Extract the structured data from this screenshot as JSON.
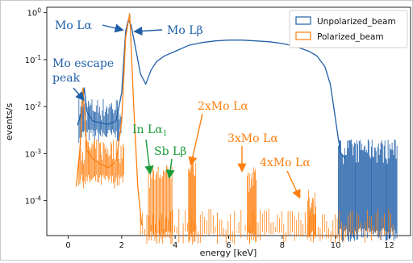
{
  "chart_data": {
    "type": "line",
    "xlabel": "energy [keV]",
    "ylabel": "events/s",
    "yscale": "log",
    "xlim": [
      -0.8,
      12.8
    ],
    "ylim": [
      1.8e-05,
      1.3
    ],
    "x_ticks": [
      "0",
      "2",
      "4",
      "6",
      "8",
      "10",
      "12"
    ],
    "y_ticks": [
      "10^0",
      "10^-1",
      "10^-2",
      "10^-3",
      "10^-4"
    ],
    "legend": {
      "position": "top-right",
      "entries": [
        "Unpolarized_beam",
        "Polarized_beam"
      ]
    },
    "colors": {
      "unpolarized": "#1f5fa8",
      "polarized": "#ff7f0e",
      "green": "#1a9a3a"
    },
    "series": [
      {
        "name": "Unpolarized_beam",
        "color": "#1f5fa8",
        "x": [
          0.35,
          0.5,
          0.6,
          0.7,
          0.9,
          1.2,
          1.5,
          1.8,
          2.0,
          2.15,
          2.25,
          2.35,
          2.5,
          2.7,
          2.9,
          3.1,
          3.3,
          3.6,
          4.0,
          4.5,
          5.0,
          5.5,
          6.0,
          6.5,
          7.0,
          7.5,
          8.0,
          8.5,
          9.0,
          9.3,
          9.6,
          9.8,
          9.95,
          10.1,
          10.2,
          10.35
        ],
        "y": [
          0.004,
          0.008,
          0.025,
          0.008,
          0.005,
          0.0045,
          0.0042,
          0.005,
          0.02,
          0.4,
          0.7,
          0.55,
          0.2,
          0.05,
          0.03,
          0.06,
          0.09,
          0.12,
          0.15,
          0.2,
          0.23,
          0.25,
          0.26,
          0.26,
          0.25,
          0.24,
          0.22,
          0.19,
          0.15,
          0.12,
          0.07,
          0.03,
          0.008,
          0.002,
          0.001,
          0.0008
        ]
      },
      {
        "name": "Polarized_beam",
        "color": "#ff7f0e",
        "x": [
          0.3,
          0.45,
          0.55,
          0.62,
          0.7,
          0.9,
          1.2,
          1.5,
          1.8,
          2.0,
          2.15,
          2.3,
          2.45,
          2.6,
          2.75
        ],
        "y": [
          0.0002,
          0.0015,
          0.025,
          0.006,
          0.0012,
          0.0008,
          0.0006,
          0.0005,
          0.0007,
          0.005,
          0.3,
          0.95,
          0.01,
          0.0002,
          3e-05
        ]
      }
    ],
    "annotations": [
      {
        "text": "Mo Lα",
        "color": "#1f5fa8"
      },
      {
        "text": "Mo Lβ",
        "color": "#1f5fa8"
      },
      {
        "text": "Mo escape",
        "color": "#1f5fa8"
      },
      {
        "text": "peak",
        "color": "#1f5fa8"
      },
      {
        "text": "In Lα",
        "sub": "1",
        "color": "#1a9a3a"
      },
      {
        "text": "Sb Lβ",
        "color": "#1a9a3a"
      },
      {
        "text": "2xMo Lα",
        "color": "#ff7f0e"
      },
      {
        "text": "3xMo Lα",
        "color": "#ff7f0e"
      },
      {
        "text": "4xMo Lα",
        "color": "#ff7f0e"
      }
    ]
  }
}
